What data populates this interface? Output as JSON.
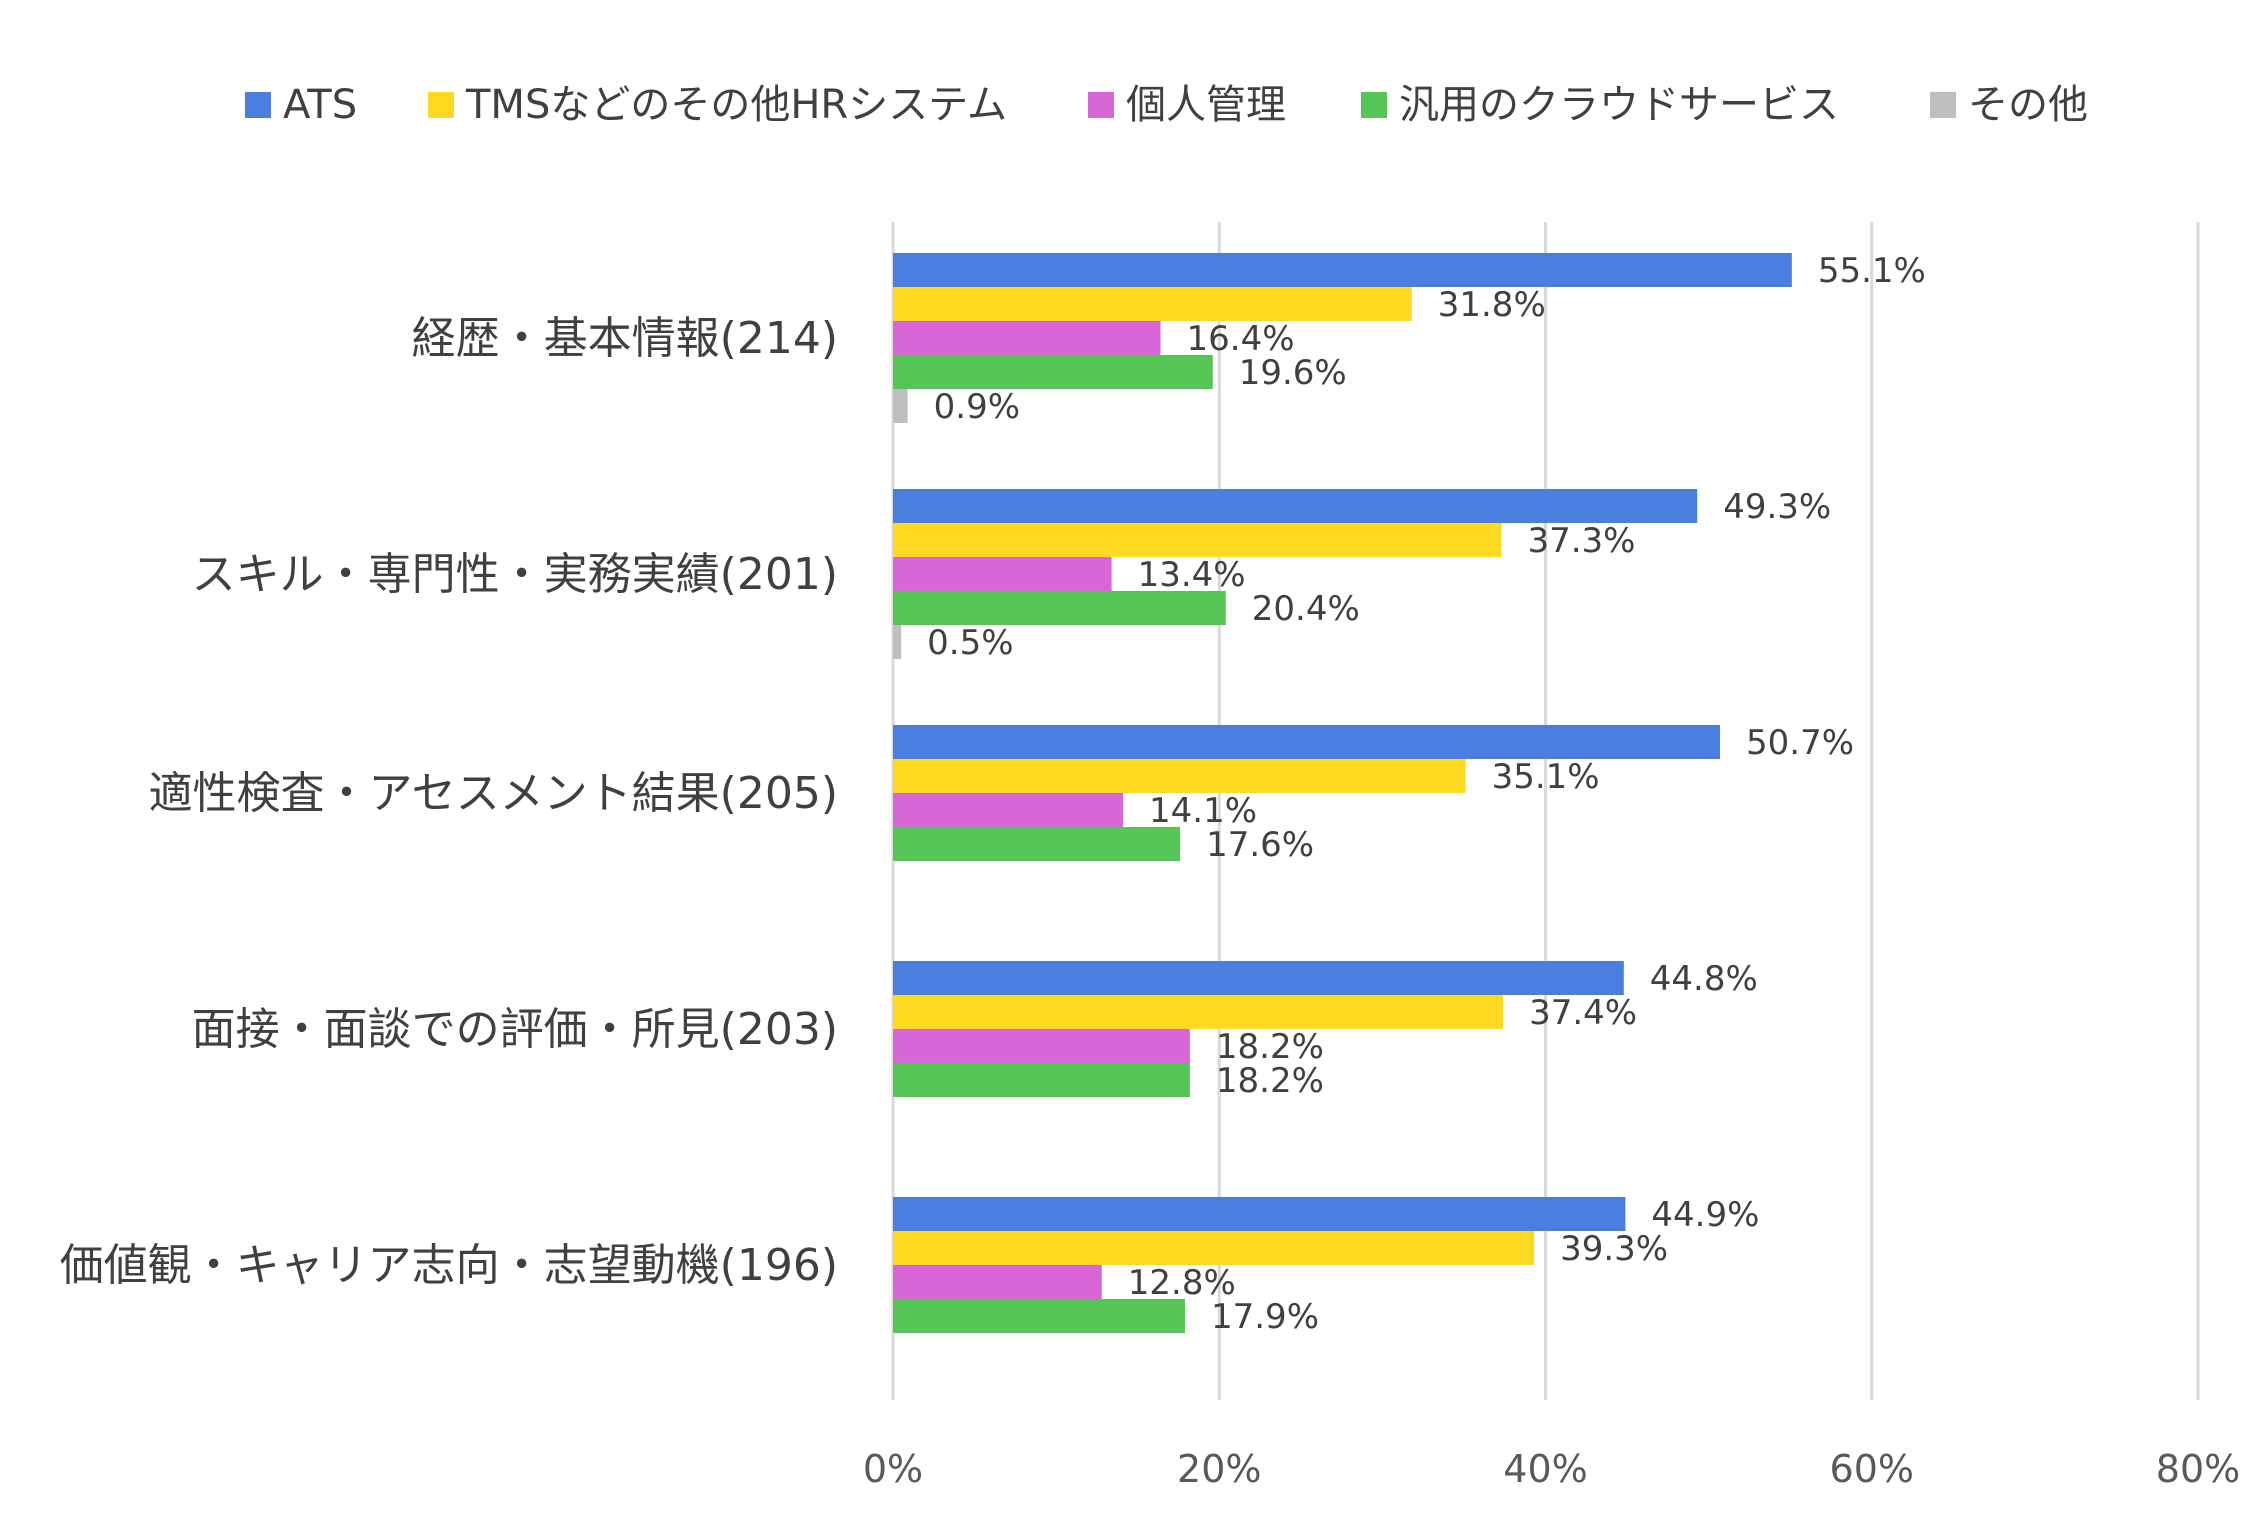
{
  "chart_data": {
    "type": "bar",
    "orientation": "horizontal",
    "title": "",
    "xlabel": "",
    "ylabel": "",
    "xlim": [
      0,
      80
    ],
    "x_ticks": [
      "0%",
      "20%",
      "40%",
      "60%",
      "80%"
    ],
    "grid": "vertical",
    "legend_position": "top",
    "categories": [
      "経歴・基本情報(214)",
      "スキル・専門性・実務実績(201)",
      "適性検査・アセスメント結果(205)",
      "面接・面談での評価・所見(203)",
      "価値観・キャリア志向・志望動機(196)"
    ],
    "series": [
      {
        "name": "ATS",
        "color": "#4A7FE0",
        "values": [
          55.1,
          49.3,
          50.7,
          44.8,
          44.9
        ],
        "labels": [
          "55.1%",
          "49.3%",
          "50.7%",
          "44.8%",
          "44.9%"
        ]
      },
      {
        "name": "TMSなどのその他HRシステム",
        "color": "#FFD91F",
        "values": [
          31.8,
          37.3,
          35.1,
          37.4,
          39.3
        ],
        "labels": [
          "31.8%",
          "37.3%",
          "35.1%",
          "37.4%",
          "39.3%"
        ]
      },
      {
        "name": "個人管理",
        "color": "#D966D6",
        "values": [
          16.4,
          13.4,
          14.1,
          18.2,
          12.8
        ],
        "labels": [
          "16.4%",
          "13.4%",
          "14.1%",
          "18.2%",
          "12.8%"
        ]
      },
      {
        "name": "汎用のクラウドサービス",
        "color": "#55C655",
        "values": [
          19.6,
          20.4,
          17.6,
          18.2,
          17.9
        ],
        "labels": [
          "19.6%",
          "20.4%",
          "17.6%",
          "18.2%",
          "17.9%"
        ]
      },
      {
        "name": "その他",
        "color": "#BFBFBF",
        "values": [
          0.9,
          0.5,
          null,
          null,
          null
        ],
        "labels": [
          "0.9%",
          "0.5%",
          null,
          null,
          null
        ]
      }
    ]
  }
}
